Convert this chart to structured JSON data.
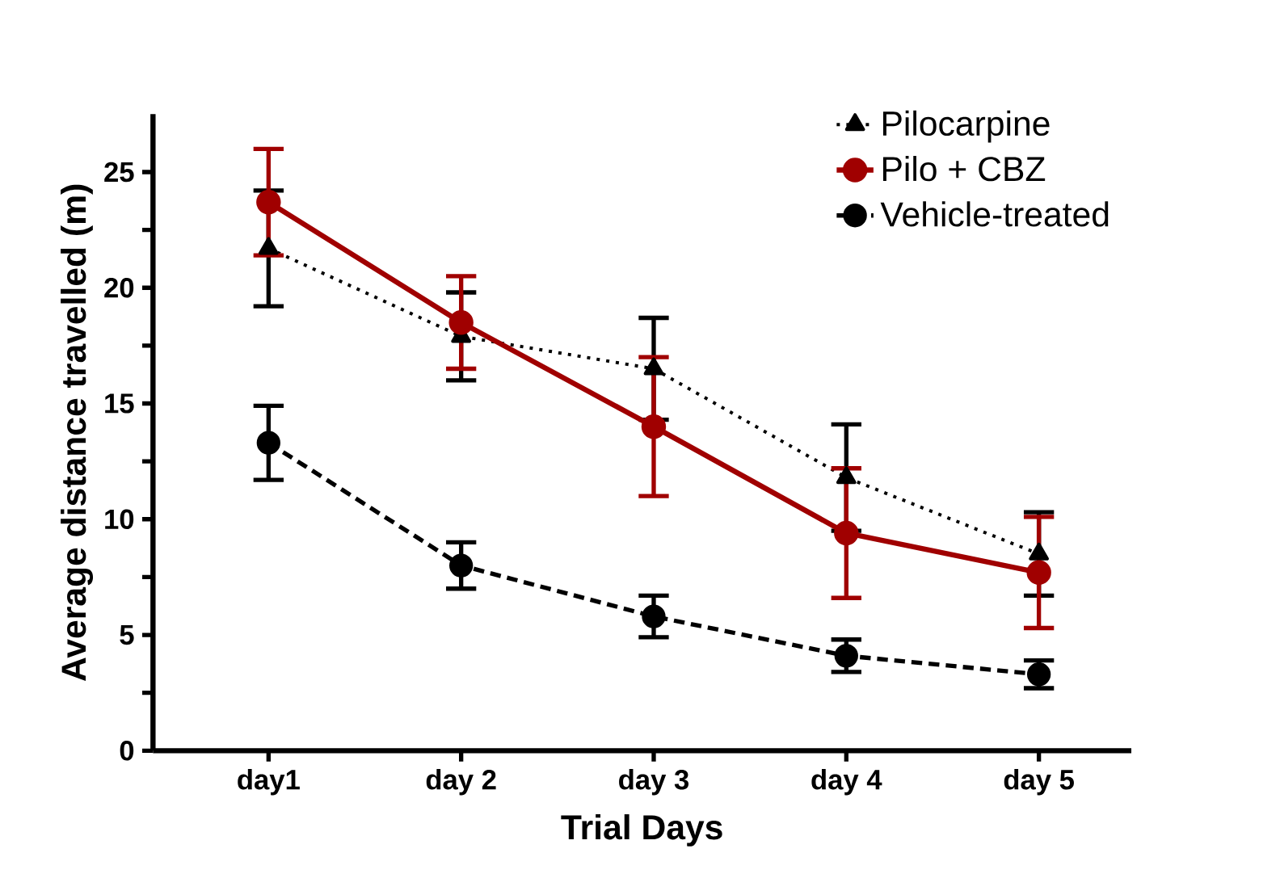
{
  "chart_data": {
    "type": "line",
    "xlabel": "Trial Days",
    "ylabel": "Average distance travelled (m)",
    "categories": [
      "day1",
      "day 2",
      "day 3",
      "day 4",
      "day 5"
    ],
    "series": [
      {
        "name": "Pilocarpine",
        "color": "#000000",
        "marker": "triangle",
        "line_style": "dotted",
        "values": [
          21.7,
          17.9,
          16.5,
          11.8,
          8.5
        ],
        "errors": [
          2.5,
          1.9,
          2.2,
          2.3,
          1.8
        ]
      },
      {
        "name": "Pilo + CBZ",
        "color": "#a00000",
        "marker": "circle",
        "line_style": "solid",
        "values": [
          23.7,
          18.5,
          14.0,
          9.4,
          7.7
        ],
        "errors": [
          2.3,
          2.0,
          3.0,
          2.8,
          2.4
        ]
      },
      {
        "name": "Vehicle-treated",
        "color": "#000000",
        "marker": "circle",
        "line_style": "dashed",
        "values": [
          13.3,
          8.0,
          5.8,
          4.1,
          3.3
        ],
        "errors": [
          1.6,
          1.0,
          0.9,
          0.7,
          0.6
        ]
      }
    ],
    "ylim": [
      0,
      27.5
    ],
    "yticks": [
      0,
      {
        "value": 2.5,
        "label": null
      },
      5,
      {
        "value": 7.5,
        "label": null
      },
      10,
      {
        "value": 12.5,
        "label": null
      },
      15,
      {
        "value": 17.5,
        "label": null
      },
      20,
      {
        "value": 22.5,
        "label": null
      },
      25
    ],
    "grid": false,
    "legend": "top right"
  }
}
